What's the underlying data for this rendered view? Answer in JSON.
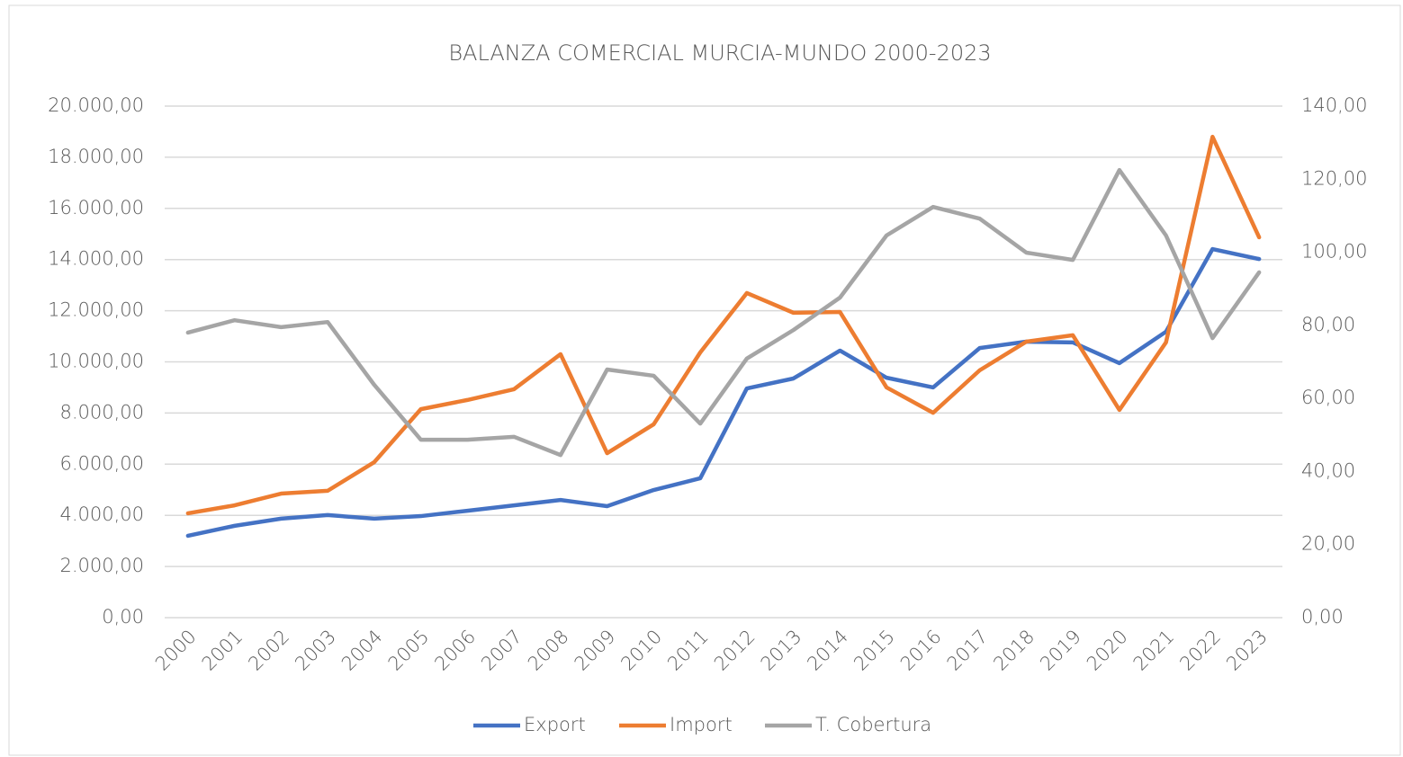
{
  "chart_data": {
    "type": "line",
    "title": "BALANZA COMERCIAL MURCIA-MUNDO 2000-2023",
    "categories": [
      "2000",
      "2001",
      "2002",
      "2003",
      "2004",
      "2005",
      "2006",
      "2007",
      "2008",
      "2009",
      "2010",
      "2011",
      "2012",
      "2013",
      "2014",
      "2015",
      "2016",
      "2017",
      "2018",
      "2019",
      "2020",
      "2021",
      "2022",
      "2023"
    ],
    "series": [
      {
        "name": "Export",
        "color": "#4472c4",
        "values": [
          3200,
          3590,
          3870,
          4010,
          3870,
          3970,
          4180,
          4390,
          4600,
          4360,
          4990,
          5450,
          8960,
          9350,
          10440,
          9380,
          9000,
          10540,
          10790,
          10760,
          9950,
          11180,
          14410,
          14020
        ]
      },
      {
        "name": "Import",
        "color": "#ed7d31",
        "values": [
          4080,
          4390,
          4850,
          4960,
          6080,
          8150,
          8510,
          8930,
          10300,
          6430,
          7560,
          10370,
          12690,
          11920,
          11950,
          9000,
          8010,
          9670,
          10790,
          11040,
          8120,
          10760,
          18800,
          14870
        ]
      },
      {
        "name": "T. Cobertura",
        "color": "#a5a5a5",
        "axis": "y2",
        "values": [
          78.0,
          81.4,
          79.5,
          80.9,
          63.7,
          48.7,
          48.7,
          49.5,
          44.5,
          67.9,
          66.2,
          53.1,
          70.9,
          78.7,
          87.6,
          104.6,
          112.4,
          109.2,
          99.9,
          97.9,
          122.5,
          104.6,
          76.5,
          94.5
        ]
      }
    ],
    "ylim": [
      0,
      20000
    ],
    "yticks": [
      {
        "value": 0,
        "label": "0,00"
      },
      {
        "value": 2000,
        "label": "2.000,00"
      },
      {
        "value": 4000,
        "label": "4.000,00"
      },
      {
        "value": 6000,
        "label": "6.000,00"
      },
      {
        "value": 8000,
        "label": "8.000,00"
      },
      {
        "value": 10000,
        "label": "10.000,00"
      },
      {
        "value": 12000,
        "label": "12.000,00"
      },
      {
        "value": 14000,
        "label": "14.000,00"
      },
      {
        "value": 16000,
        "label": "16.000,00"
      },
      {
        "value": 18000,
        "label": "18.000,00"
      },
      {
        "value": 20000,
        "label": "20.000,00"
      }
    ],
    "y2lim": [
      0,
      140
    ],
    "y2ticks": [
      {
        "value": 0,
        "label": "0,00"
      },
      {
        "value": 20,
        "label": "20,00"
      },
      {
        "value": 40,
        "label": "40,00"
      },
      {
        "value": 60,
        "label": "60,00"
      },
      {
        "value": 80,
        "label": "80,00"
      },
      {
        "value": 100,
        "label": "100,00"
      },
      {
        "value": 120,
        "label": "120,00"
      },
      {
        "value": 140,
        "label": "140,00"
      }
    ],
    "grid": true,
    "legend": "bottom"
  }
}
